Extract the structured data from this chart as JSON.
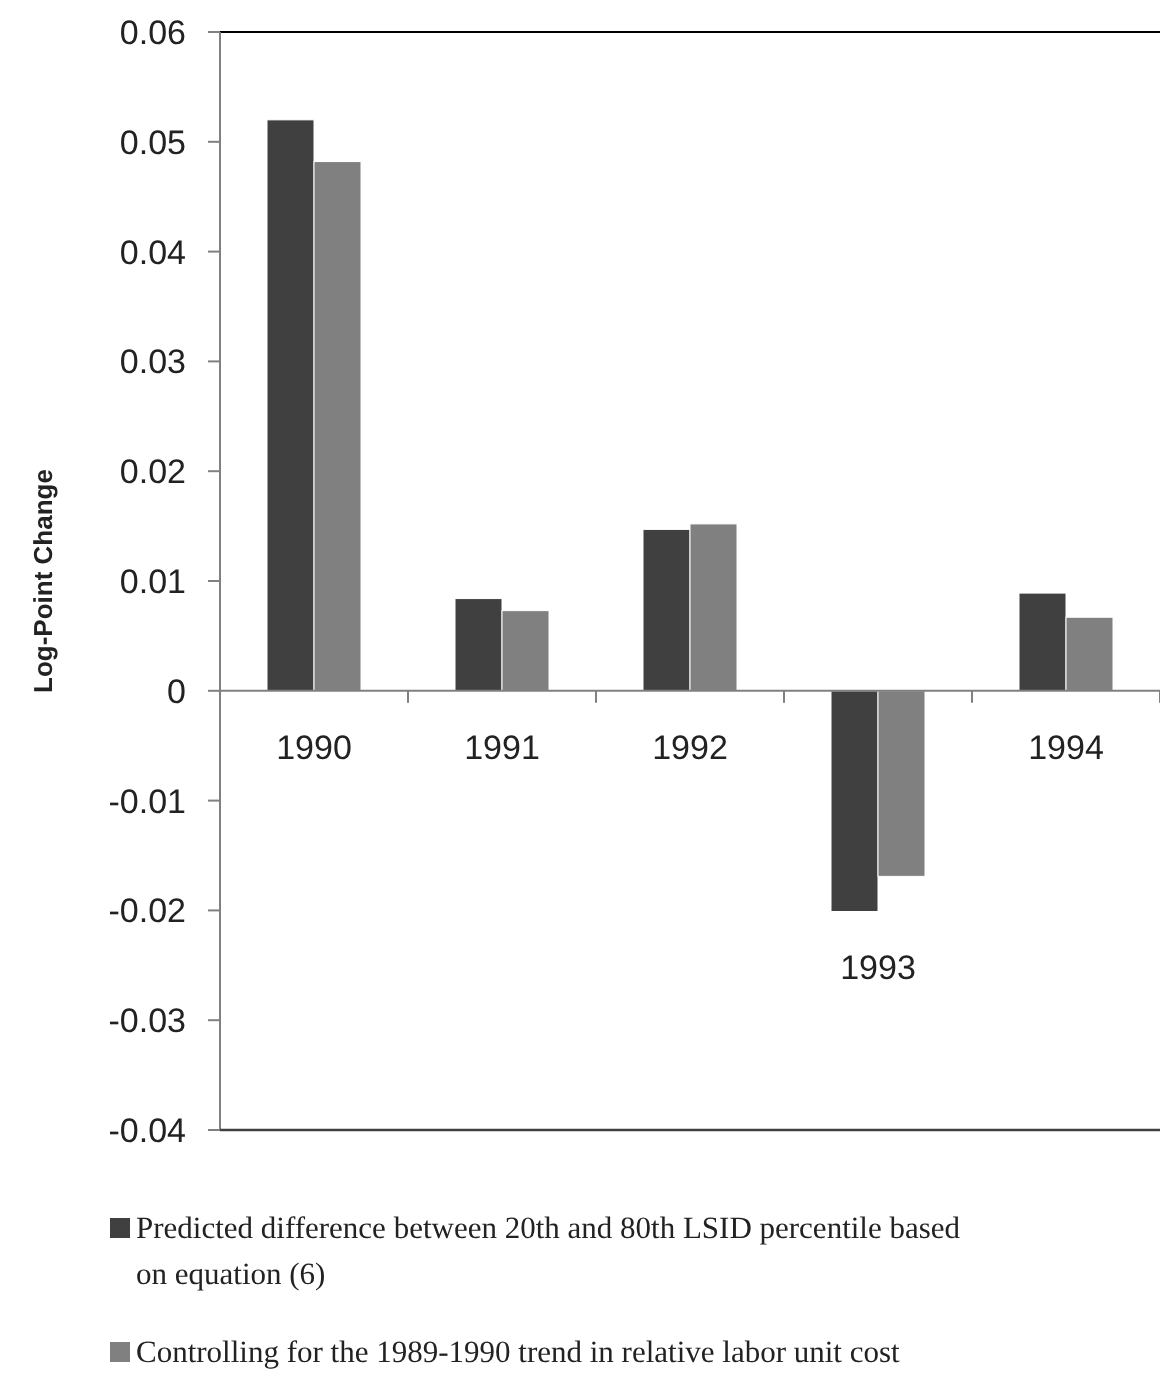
{
  "chart_data": {
    "type": "bar",
    "ylabel": "Log-Point Change",
    "categories": [
      "1990",
      "1991",
      "1992",
      "1993",
      "1994"
    ],
    "series": [
      {
        "name": "Predicted difference between 20th and 80th LSID percentile based on equation (6)",
        "color": "#404040",
        "values": [
          0.052,
          0.0084,
          0.0147,
          -0.0201,
          0.0089
        ]
      },
      {
        "name": "Controlling for the 1989-1990 trend in relative labor unit cost",
        "color": "#808080",
        "values": [
          0.0482,
          0.0073,
          0.0152,
          -0.0169,
          0.0067
        ]
      }
    ],
    "ylim": [
      -0.04,
      0.06
    ],
    "yticks": [
      -0.04,
      -0.03,
      -0.02,
      -0.01,
      0,
      0.01,
      0.02,
      0.03,
      0.04,
      0.05,
      0.06
    ],
    "legend": "bottom"
  }
}
